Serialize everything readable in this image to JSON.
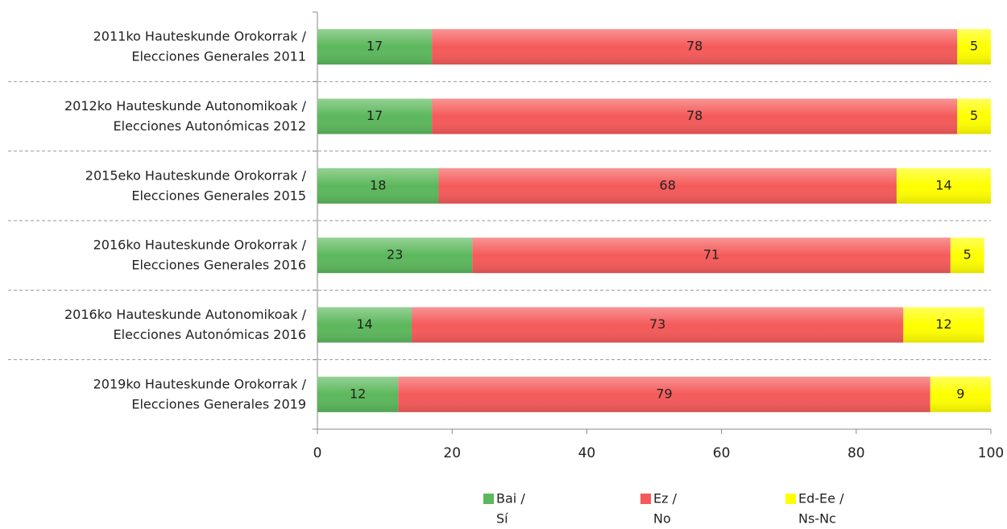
{
  "chart_data": {
    "type": "stacked_bar_horizontal",
    "categories": [
      "2011ko Hauteskunde Orokorrak /\nElecciones Generales 2011",
      "2012ko Hauteskunde Autonomikoak /\nElecciones Autonómicas 2012",
      "2015eko Hauteskunde Orokorrak /\nElecciones Generales 2015",
      "2016ko Hauteskunde Orokorrak /\nElecciones Generales 2016",
      "2016ko Hauteskunde Autonomikoak /\nElecciones Autonómicas 2016",
      "2019ko Hauteskunde Orokorrak /\nElecciones Generales 2019"
    ],
    "series": [
      {
        "name": "Bai /\nSí",
        "color": "#5cb85c",
        "values": [
          17,
          17,
          18,
          23,
          14,
          12
        ]
      },
      {
        "name": "Ez /\nNo",
        "color": "#f55a5a",
        "values": [
          78,
          78,
          68,
          71,
          73,
          79
        ]
      },
      {
        "name": "Ed-Ee /\nNs-Nc",
        "color": "#ffff00",
        "values": [
          5,
          5,
          14,
          5,
          12,
          9
        ]
      }
    ],
    "xlim": [
      0,
      100
    ],
    "xticks": [
      0,
      20,
      40,
      60,
      80,
      100
    ],
    "grid": true
  }
}
